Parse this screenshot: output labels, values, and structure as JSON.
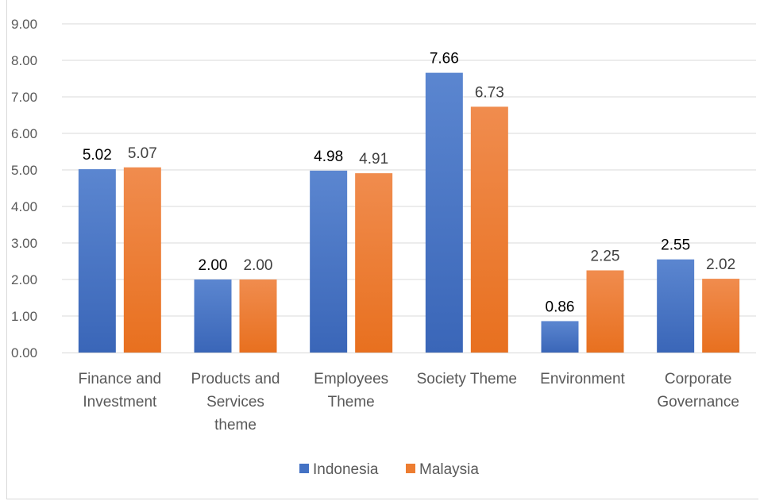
{
  "chart_data": {
    "type": "bar",
    "categories": [
      [
        "Finance and",
        "Investment"
      ],
      [
        "Products and",
        "Services",
        "theme"
      ],
      [
        "Employees",
        "Theme"
      ],
      [
        "Society Theme"
      ],
      [
        "Environment"
      ],
      [
        "Corporate",
        "Governance"
      ]
    ],
    "series": [
      {
        "name": "Indonesia",
        "values": [
          5.02,
          2.0,
          4.98,
          7.66,
          0.86,
          2.55
        ],
        "value_labels": [
          "5.02",
          "2.00",
          "4.98",
          "7.66",
          "0.86",
          "2.55"
        ],
        "color": "#4472c4",
        "label_color": "#000000"
      },
      {
        "name": "Malaysia",
        "values": [
          5.07,
          2.0,
          4.91,
          6.73,
          2.25,
          2.02
        ],
        "value_labels": [
          "5.07",
          "2.00",
          "4.91",
          "6.73",
          "2.25",
          "2.02"
        ],
        "color": "#ed7d31",
        "label_color": "#404040"
      }
    ],
    "ylim": [
      0,
      9
    ],
    "yticks": [
      "0.00",
      "1.00",
      "2.00",
      "3.00",
      "4.00",
      "5.00",
      "6.00",
      "7.00",
      "8.00",
      "9.00"
    ],
    "grid": true,
    "legend": "bottom",
    "title": "",
    "xlabel": "",
    "ylabel": ""
  }
}
